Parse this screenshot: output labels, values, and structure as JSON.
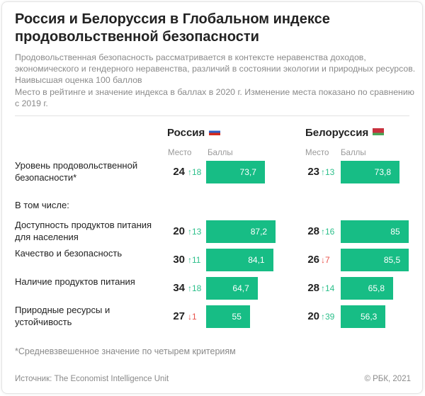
{
  "title": "Россия и Белоруссия в Глобальном индексе продовольственной безопасности",
  "description": "Продовольственная безопасность рассматривается в контексте неравенства доходов, экономического и гендерного неравенства, различий в состоянии экологии и природных ресурсов. Наивысшая оценка 100 баллов",
  "note": "Место в рейтинге и значение индекса в баллах в 2020 г. Изменение места показано по сравнению с 2019 г.",
  "colors": {
    "bar": "#17bd85",
    "up": "#2bbf8a",
    "down": "#e8514a"
  },
  "chart_data": {
    "type": "table",
    "columns": {
      "rank": "Место",
      "score": "Баллы"
    },
    "subheading": "В том числе:",
    "countries": [
      {
        "name": "Россия"
      },
      {
        "name": "Белоруссия"
      }
    ],
    "rows": [
      {
        "label": "Уровень продовольственной безопасности*",
        "values": [
          {
            "rank": "24",
            "change": "↑18",
            "dir": "up",
            "score": 73.7,
            "score_label": "73,7"
          },
          {
            "rank": "23",
            "change": "↑13",
            "dir": "up",
            "score": 73.8,
            "score_label": "73,8"
          }
        ]
      },
      {
        "label": "Доступность продуктов питания для населения",
        "values": [
          {
            "rank": "20",
            "change": "↑13",
            "dir": "up",
            "score": 87.2,
            "score_label": "87,2"
          },
          {
            "rank": "28",
            "change": "↑16",
            "dir": "up",
            "score": 85,
            "score_label": "85"
          }
        ]
      },
      {
        "label": "Качество и безопасность",
        "values": [
          {
            "rank": "30",
            "change": "↑11",
            "dir": "up",
            "score": 84.1,
            "score_label": "84,1"
          },
          {
            "rank": "26",
            "change": "↓7",
            "dir": "down",
            "score": 85.5,
            "score_label": "85,5"
          }
        ]
      },
      {
        "label": "Наличие продуктов питания",
        "values": [
          {
            "rank": "34",
            "change": "↑18",
            "dir": "up",
            "score": 64.7,
            "score_label": "64,7"
          },
          {
            "rank": "28",
            "change": "↑14",
            "dir": "up",
            "score": 65.8,
            "score_label": "65,8"
          }
        ]
      },
      {
        "label": "Природные ресурсы и устойчивость",
        "values": [
          {
            "rank": "27",
            "change": "↓1",
            "dir": "down",
            "score": 55,
            "score_label": "55"
          },
          {
            "rank": "20",
            "change": "↑39",
            "dir": "up",
            "score": 56.3,
            "score_label": "56,3"
          }
        ]
      }
    ],
    "max_score": 100
  },
  "footnote": "*Средневзвешенное значение по четырем критериям",
  "source": "Источник: The Economist Intelligence Unit",
  "copyright": "© РБК, 2021"
}
